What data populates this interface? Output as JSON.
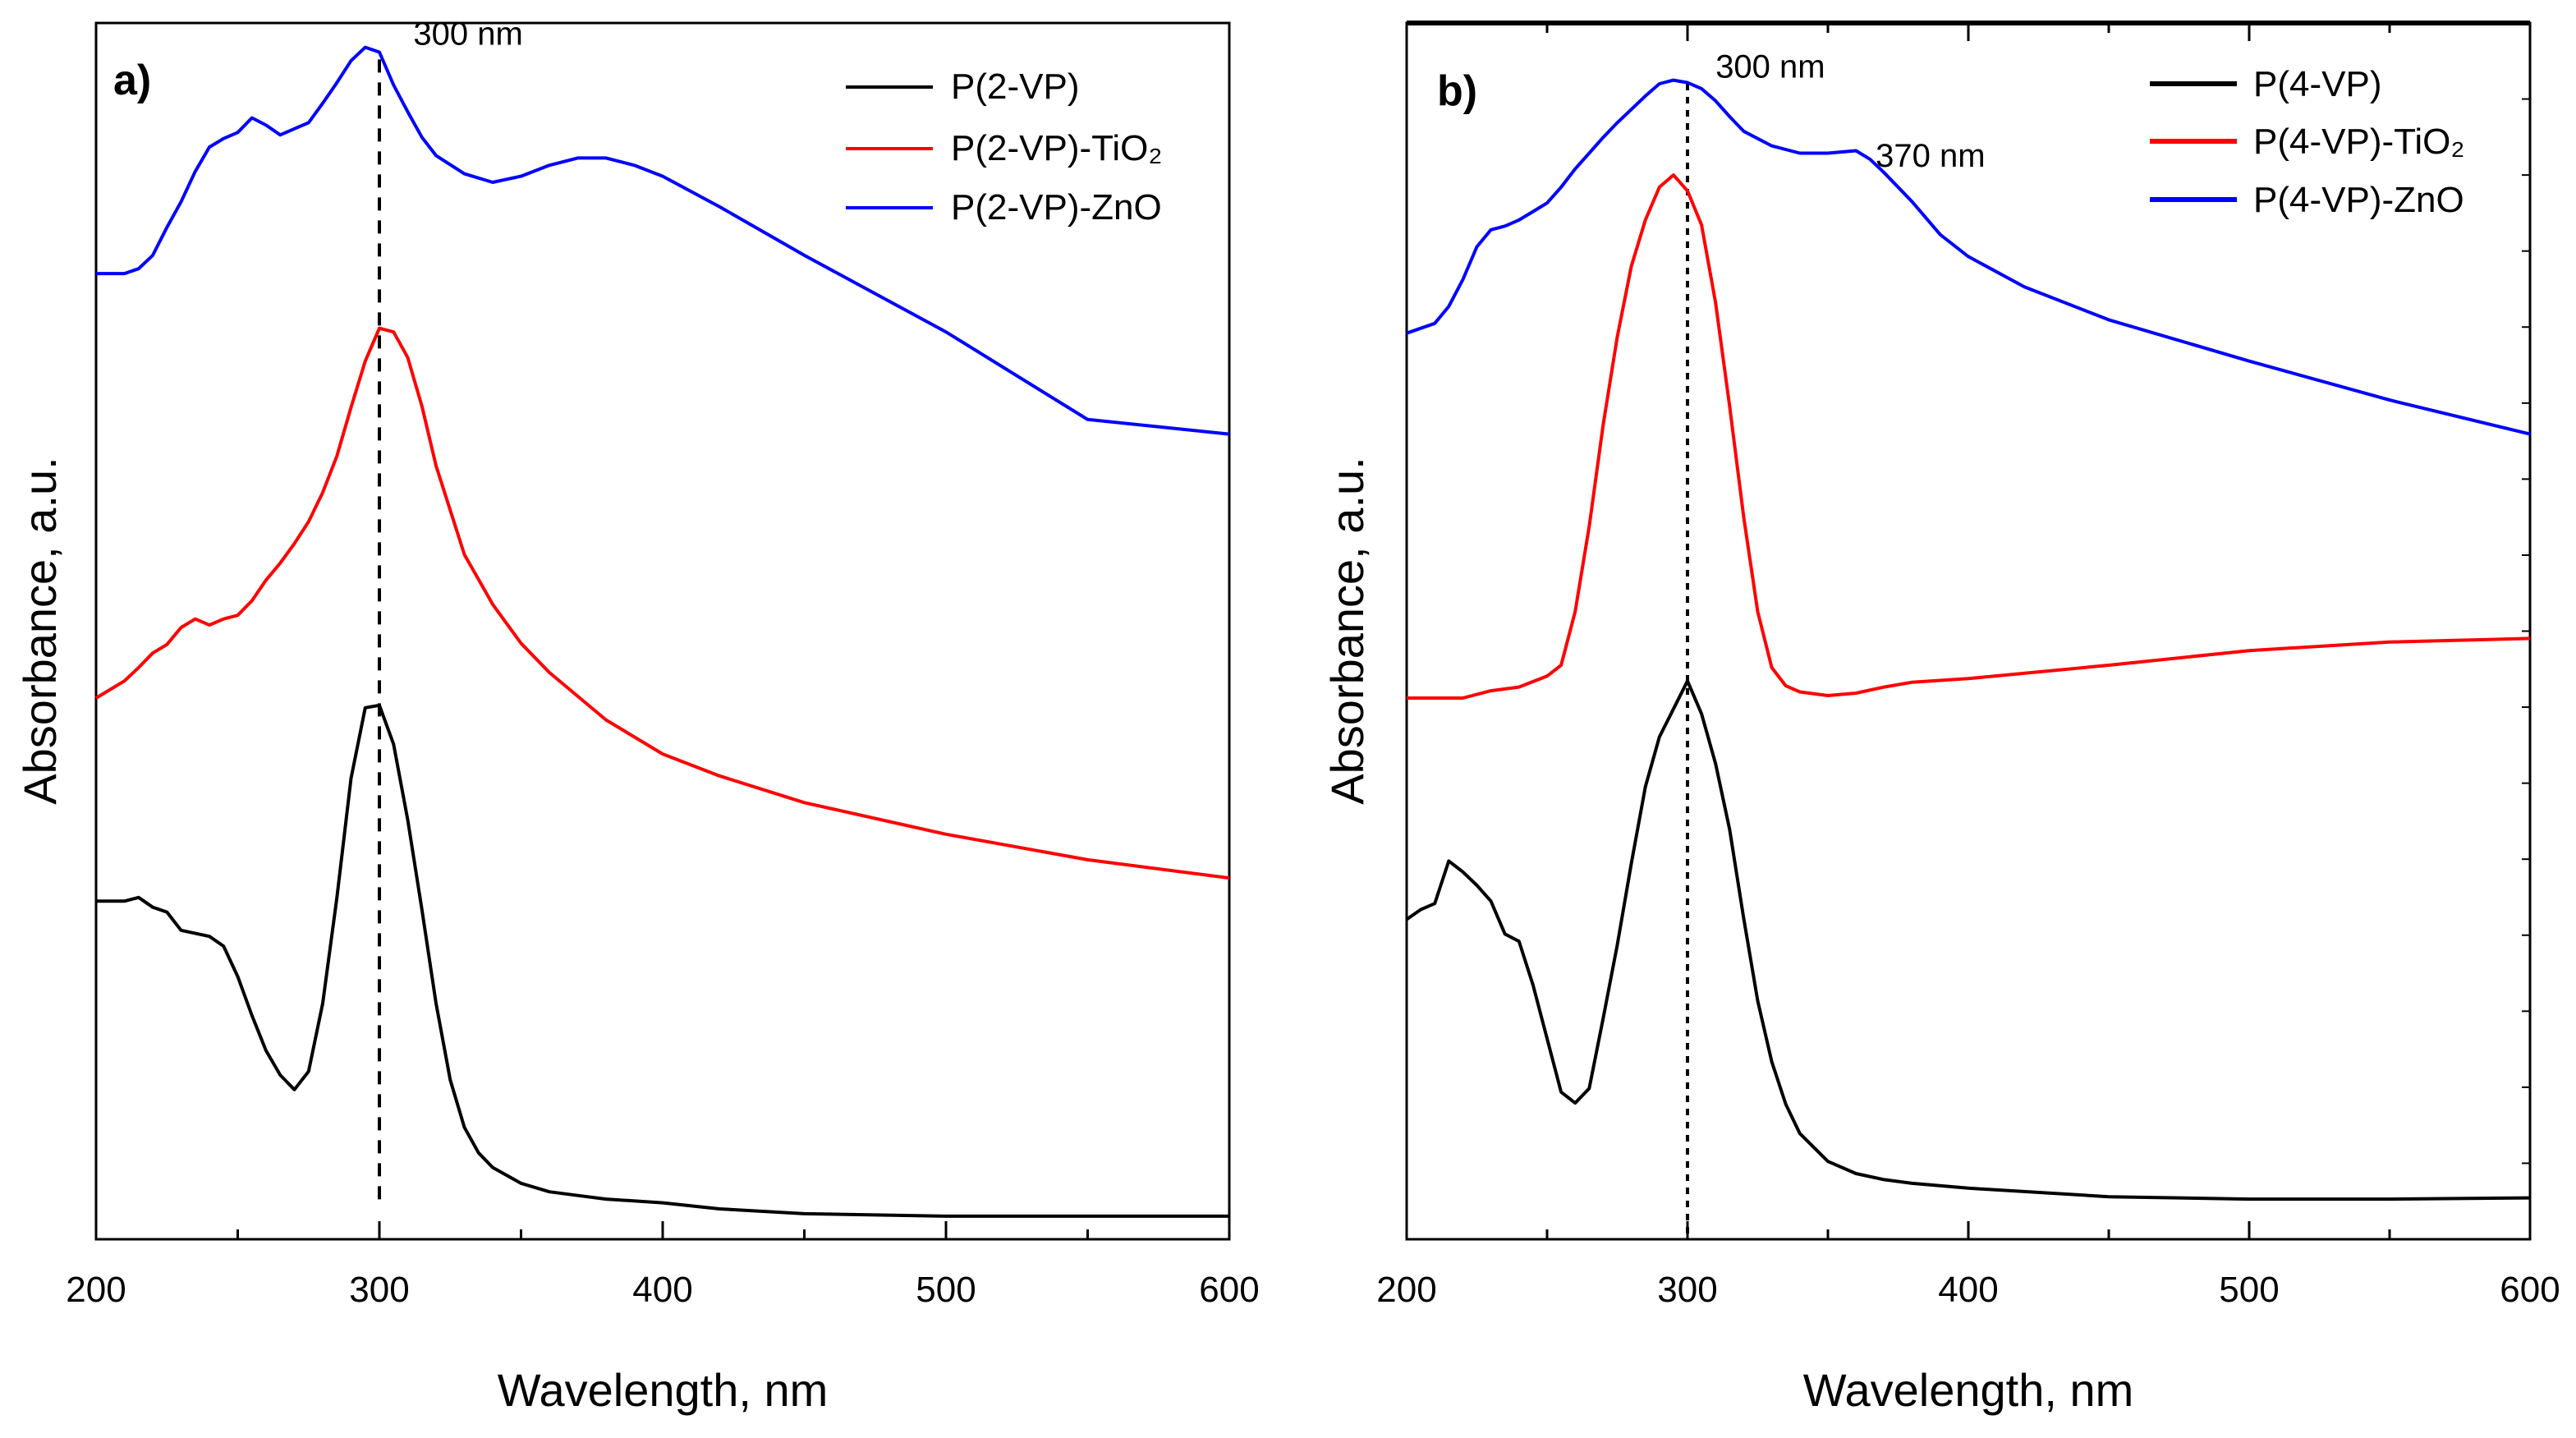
{
  "colors": {
    "black": "#000000",
    "red": "#ff0000",
    "blue": "#0000ff"
  },
  "chart_data": [
    {
      "type": "line",
      "panel_label": "a)",
      "xlabel": "Wavelength, nm",
      "ylabel": "Absorbance, a.u.",
      "xlim": [
        200,
        600
      ],
      "ylim": [
        0,
        100
      ],
      "y_tick_labels_shown": false,
      "x_ticks": [
        200,
        300,
        400,
        500,
        600
      ],
      "legend_position": "top-right",
      "annotations": [
        {
          "text": "300 nm",
          "x": 312,
          "y": 98.2
        }
      ],
      "vline": {
        "x": 300,
        "y_from": 3,
        "y_to": 97
      },
      "series": [
        {
          "name": "P(2-VP)",
          "color": "#000000",
          "x": [
            200,
            210,
            215,
            220,
            225,
            230,
            240,
            245,
            250,
            255,
            260,
            265,
            270,
            275,
            280,
            285,
            290,
            295,
            300,
            305,
            310,
            315,
            320,
            325,
            330,
            335,
            340,
            350,
            360,
            370,
            380,
            400,
            420,
            450,
            500,
            550,
            600
          ],
          "y": [
            27.8,
            27.8,
            28.1,
            27.3,
            26.9,
            25.4,
            24.9,
            24.1,
            21.6,
            18.4,
            15.5,
            13.5,
            12.3,
            13.8,
            19.4,
            28.1,
            37.9,
            43.7,
            43.9,
            40.7,
            34.5,
            27.1,
            19.4,
            13.1,
            9.2,
            7.1,
            5.9,
            4.6,
            3.9,
            3.6,
            3.3,
            3.0,
            2.5,
            2.1,
            1.9,
            1.9,
            1.9
          ]
        },
        {
          "name": "P(2-VP)-TiO₂",
          "color": "#ff0000",
          "x": [
            200,
            210,
            215,
            220,
            225,
            230,
            235,
            240,
            245,
            250,
            255,
            260,
            265,
            270,
            275,
            280,
            285,
            290,
            295,
            300,
            305,
            310,
            315,
            320,
            330,
            340,
            350,
            360,
            380,
            400,
            420,
            450,
            500,
            550,
            600
          ],
          "y": [
            44.5,
            45.9,
            47.0,
            48.2,
            48.9,
            50.3,
            51.0,
            50.5,
            51.0,
            51.3,
            52.5,
            54.2,
            55.6,
            57.2,
            59.0,
            61.4,
            64.4,
            68.4,
            72.2,
            74.9,
            74.6,
            72.5,
            68.5,
            63.6,
            56.3,
            52.2,
            49.0,
            46.6,
            42.7,
            39.9,
            38.1,
            35.9,
            33.3,
            31.2,
            29.7
          ]
        },
        {
          "name": "P(2-VP)-ZnO",
          "color": "#0000ff",
          "x": [
            200,
            210,
            215,
            220,
            225,
            230,
            235,
            240,
            245,
            250,
            255,
            260,
            265,
            270,
            275,
            280,
            285,
            290,
            295,
            300,
            305,
            310,
            315,
            320,
            330,
            340,
            350,
            360,
            370,
            380,
            390,
            400,
            420,
            450,
            500,
            550,
            600
          ],
          "y": [
            79.4,
            79.4,
            79.8,
            80.9,
            83.2,
            85.3,
            87.8,
            89.8,
            90.5,
            91.0,
            92.2,
            91.6,
            90.8,
            91.3,
            91.8,
            93.4,
            95.1,
            96.9,
            98.0,
            97.6,
            94.9,
            92.7,
            90.6,
            89.1,
            87.6,
            86.9,
            87.4,
            88.3,
            88.9,
            88.9,
            88.3,
            87.4,
            84.9,
            80.9,
            74.6,
            67.4,
            66.2
          ]
        }
      ]
    },
    {
      "type": "line",
      "panel_label": "b)",
      "xlabel": "Wavelength, nm",
      "ylabel": "Absorbance, a.u.",
      "xlim": [
        200,
        600
      ],
      "ylim": [
        0,
        100
      ],
      "y_tick_labels_shown": false,
      "x_ticks": [
        200,
        300,
        400,
        500,
        600
      ],
      "legend_position": "top-right",
      "annotations": [
        {
          "text": "300 nm",
          "x": 310,
          "y": 95.5
        },
        {
          "text": "370 nm",
          "x": 367,
          "y": 88.2
        }
      ],
      "vline": {
        "x": 300,
        "y_from": 0,
        "y_to": 95
      },
      "series": [
        {
          "name": "P(4-VP)",
          "color": "#000000",
          "x": [
            200,
            205,
            210,
            215,
            220,
            225,
            230,
            235,
            240,
            245,
            250,
            255,
            260,
            265,
            270,
            275,
            280,
            285,
            290,
            295,
            300,
            305,
            310,
            315,
            320,
            325,
            330,
            335,
            340,
            350,
            360,
            370,
            380,
            400,
            450,
            500,
            550,
            600
          ],
          "y": [
            26.3,
            27.1,
            27.6,
            31.1,
            30.2,
            29.1,
            27.8,
            25.1,
            24.5,
            20.9,
            16.5,
            12.1,
            11.2,
            12.4,
            18.2,
            24.2,
            30.9,
            37.2,
            41.3,
            43.6,
            45.9,
            43.2,
            39.1,
            33.7,
            26.4,
            19.6,
            14.6,
            11.1,
            8.7,
            6.4,
            5.4,
            4.9,
            4.6,
            4.2,
            3.5,
            3.3,
            3.3,
            3.4
          ]
        },
        {
          "name": "P(4-VP)-TiO₂",
          "color": "#ff0000",
          "x": [
            200,
            210,
            220,
            230,
            240,
            250,
            255,
            260,
            265,
            270,
            275,
            280,
            285,
            290,
            295,
            300,
            305,
            310,
            315,
            320,
            325,
            330,
            335,
            340,
            350,
            360,
            370,
            380,
            400,
            450,
            500,
            550,
            600
          ],
          "y": [
            44.5,
            44.5,
            44.5,
            45.1,
            45.4,
            46.3,
            47.2,
            51.6,
            58.6,
            67.0,
            74.2,
            80.0,
            83.8,
            86.5,
            87.5,
            86.2,
            83.4,
            77.0,
            68.5,
            59.4,
            51.6,
            47.0,
            45.5,
            45.0,
            44.7,
            44.9,
            45.4,
            45.8,
            46.1,
            47.2,
            48.4,
            49.1,
            49.4
          ]
        },
        {
          "name": "P(4-VP)-ZnO",
          "color": "#0000ff",
          "x": [
            200,
            210,
            215,
            220,
            225,
            230,
            235,
            240,
            245,
            250,
            255,
            260,
            265,
            270,
            275,
            280,
            285,
            290,
            295,
            300,
            305,
            310,
            315,
            320,
            330,
            340,
            350,
            360,
            365,
            370,
            380,
            390,
            400,
            420,
            450,
            500,
            550,
            600
          ],
          "y": [
            74.5,
            75.3,
            76.7,
            78.9,
            81.6,
            83.0,
            83.3,
            83.8,
            84.5,
            85.2,
            86.5,
            88.0,
            89.3,
            90.6,
            91.8,
            92.9,
            94.0,
            95.0,
            95.3,
            95.1,
            94.6,
            93.6,
            92.3,
            91.1,
            89.9,
            89.3,
            89.3,
            89.5,
            88.8,
            87.7,
            85.3,
            82.6,
            80.8,
            78.3,
            75.6,
            72.2,
            69.0,
            66.2
          ]
        }
      ]
    }
  ]
}
